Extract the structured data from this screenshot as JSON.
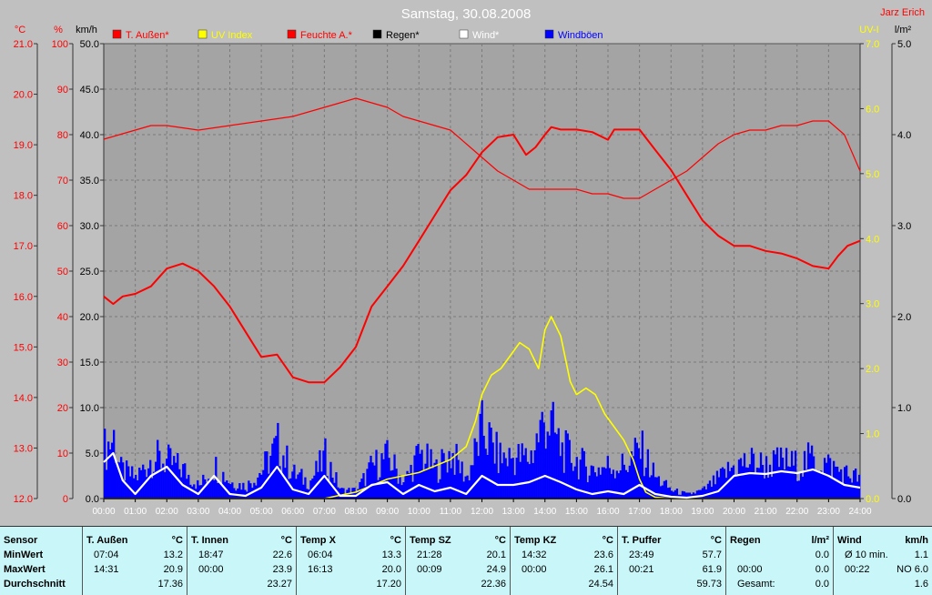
{
  "header": {
    "title": "Samstag, 30.08.2008",
    "author": "Jarz Erich"
  },
  "legend": [
    {
      "label": "T. Außen*",
      "color": "#ff0000"
    },
    {
      "label": "UV Index",
      "color": "#ffff00"
    },
    {
      "label": "Feuchte A.*",
      "color": "#ff0000"
    },
    {
      "label": "Regen*",
      "color": "#000000"
    },
    {
      "label": "Wind*",
      "color": "#ffffff"
    },
    {
      "label": "Windböen",
      "color": "#0000ff"
    }
  ],
  "chart_data": {
    "type": "line",
    "title": "Samstag, 30.08.2008",
    "x_ticks": [
      "00:00",
      "01:00",
      "02:00",
      "03:00",
      "04:00",
      "05:00",
      "06:00",
      "07:00",
      "08:00",
      "09:00",
      "10:00",
      "11:00",
      "12:00",
      "13:00",
      "14:00",
      "15:00",
      "16:00",
      "17:00",
      "18:00",
      "19:00",
      "20:00",
      "21:00",
      "22:00",
      "23:00",
      "24:00"
    ],
    "axes": {
      "temp": {
        "unit": "°C",
        "range": [
          12.0,
          21.0
        ],
        "ticks": [
          "12.0",
          "13.0",
          "14.0",
          "15.0",
          "16.0",
          "17.0",
          "18.0",
          "19.0",
          "20.0",
          "21.0"
        ],
        "color": "#ff0000"
      },
      "humidity": {
        "unit": "%",
        "range": [
          0,
          100
        ],
        "ticks": [
          "0",
          "10",
          "20",
          "30",
          "40",
          "50",
          "60",
          "70",
          "80",
          "90",
          "100"
        ],
        "color": "#ff0000"
      },
      "wind": {
        "unit": "km/h",
        "range": [
          0,
          50
        ],
        "ticks": [
          "0.0",
          "5.0",
          "10.0",
          "15.0",
          "20.0",
          "25.0",
          "30.0",
          "35.0",
          "40.0",
          "45.0",
          "50.0"
        ],
        "color": "#000000"
      },
      "uv": {
        "unit": "UV-I",
        "range": [
          0,
          7
        ],
        "ticks": [
          "0.0",
          "1.0",
          "2.0",
          "3.0",
          "4.0",
          "5.0",
          "6.0",
          "7.0"
        ],
        "color": "#ffff00"
      },
      "rain": {
        "unit": "l/m²",
        "range": [
          0,
          5
        ],
        "ticks": [
          "0.0",
          "1.0",
          "2.0",
          "3.0",
          "4.0",
          "5.0"
        ],
        "color": "#000000"
      }
    },
    "series": [
      {
        "name": "T. Außen*",
        "axis": "temp",
        "color": "#ff0000",
        "x": [
          0,
          0.3,
          0.6,
          1,
          1.5,
          2,
          2.5,
          3,
          3.5,
          4,
          4.5,
          5,
          5.5,
          6,
          6.5,
          7,
          7.5,
          8,
          8.5,
          9,
          9.5,
          10,
          10.5,
          11,
          11.5,
          12,
          12.5,
          13,
          13.4,
          13.7,
          14,
          14.2,
          14.5,
          15,
          15.5,
          16,
          16.2,
          16.5,
          17,
          17.5,
          18,
          18.5,
          19,
          19.5,
          20,
          20.5,
          21,
          21.5,
          22,
          22.5,
          23,
          23.3,
          23.6,
          24
        ],
        "y": [
          16.0,
          15.85,
          16.0,
          16.05,
          16.2,
          16.55,
          16.65,
          16.5,
          16.2,
          15.8,
          15.3,
          14.8,
          14.85,
          14.4,
          14.3,
          14.3,
          14.6,
          15.0,
          15.8,
          16.2,
          16.6,
          17.1,
          17.6,
          18.1,
          18.4,
          18.85,
          19.15,
          19.2,
          18.8,
          18.95,
          19.2,
          19.35,
          19.3,
          19.3,
          19.25,
          19.1,
          19.3,
          19.3,
          19.3,
          18.9,
          18.5,
          18.0,
          17.5,
          17.2,
          17.0,
          17.0,
          16.9,
          16.85,
          16.75,
          16.6,
          16.55,
          16.8,
          17.0,
          17.1
        ]
      },
      {
        "name": "Feuchte A.*",
        "axis": "humidity",
        "color": "#ff0000",
        "x": [
          0,
          0.5,
          1,
          1.5,
          2,
          3,
          4,
          5,
          6,
          7,
          7.5,
          8,
          8.5,
          9,
          9.5,
          10,
          10.5,
          11,
          11.5,
          12,
          12.5,
          13,
          13.5,
          14,
          14.5,
          15,
          15.5,
          16,
          16.5,
          17,
          17.5,
          18,
          18.5,
          19,
          19.5,
          20,
          20.5,
          21,
          21.5,
          22,
          22.5,
          23,
          23.5,
          24
        ],
        "y": [
          79,
          80,
          81,
          82,
          82,
          81,
          82,
          83,
          84,
          86,
          87,
          88,
          87,
          86,
          84,
          83,
          82,
          81,
          78,
          75,
          72,
          70,
          68,
          68,
          68,
          68,
          67,
          67,
          66,
          66,
          68,
          70,
          72,
          75,
          78,
          80,
          81,
          81,
          82,
          82,
          83,
          83,
          80,
          72
        ]
      },
      {
        "name": "UV Index",
        "axis": "uv",
        "color": "#ffff00",
        "x": [
          0,
          7,
          7.5,
          8,
          8.5,
          9,
          9.5,
          10,
          10.5,
          11,
          11.5,
          11.8,
          12,
          12.3,
          12.6,
          12.9,
          13.2,
          13.5,
          13.8,
          14,
          14.2,
          14.5,
          14.8,
          15,
          15.3,
          15.6,
          15.9,
          16.2,
          16.5,
          16.8,
          17,
          17.2,
          17.5,
          18,
          24
        ],
        "y": [
          0,
          0,
          0.05,
          0.1,
          0.2,
          0.3,
          0.35,
          0.4,
          0.5,
          0.6,
          0.8,
          1.2,
          1.6,
          1.9,
          2.0,
          2.2,
          2.4,
          2.3,
          2.0,
          2.6,
          2.8,
          2.5,
          1.8,
          1.6,
          1.7,
          1.6,
          1.3,
          1.1,
          0.9,
          0.6,
          0.3,
          0.1,
          0.02,
          0,
          0
        ]
      },
      {
        "name": "Regen*",
        "axis": "rain",
        "color": "#000000",
        "x": [
          0,
          24
        ],
        "y": [
          0,
          0
        ]
      },
      {
        "name": "Wind*",
        "axis": "wind",
        "color": "#ffffff",
        "x": [
          0,
          0.3,
          0.6,
          1,
          1.5,
          2,
          2.5,
          3,
          3.5,
          4,
          4.5,
          5,
          5.5,
          6,
          6.5,
          7,
          7.5,
          8,
          8.5,
          9,
          9.5,
          10,
          10.5,
          11,
          11.5,
          12,
          12.5,
          13,
          13.5,
          14,
          14.5,
          15,
          15.5,
          16,
          16.5,
          17,
          17.5,
          18,
          18.5,
          19,
          19.5,
          20,
          20.5,
          21,
          21.5,
          22,
          22.5,
          23,
          23.5,
          24
        ],
        "y": [
          4.0,
          5.0,
          2.0,
          0.5,
          2.5,
          3.5,
          1.5,
          0.5,
          2.5,
          0.5,
          0.3,
          1.2,
          3.5,
          1.0,
          0.5,
          2.5,
          0.3,
          0.3,
          1.5,
          1.8,
          0.5,
          1.5,
          0.8,
          1.2,
          0.5,
          2.5,
          1.5,
          1.5,
          1.8,
          2.5,
          1.8,
          1.0,
          0.5,
          0.8,
          0.5,
          1.5,
          0.5,
          0.2,
          0.1,
          0.3,
          0.8,
          2.5,
          2.8,
          2.7,
          3.0,
          2.8,
          3.2,
          2.5,
          1.5,
          1.2
        ]
      },
      {
        "name": "Windböen",
        "axis": "wind",
        "color": "#0000ff",
        "x": [
          0,
          0.3,
          0.5,
          1,
          1.5,
          2,
          2.5,
          3,
          3.5,
          4,
          4.5,
          5,
          5.5,
          6,
          6.5,
          7,
          7.5,
          8,
          8.5,
          9,
          9.5,
          10,
          10.5,
          11,
          11.5,
          12,
          12.5,
          13,
          13.5,
          14,
          14.5,
          15,
          15.5,
          16,
          16.5,
          17,
          17.5,
          18,
          18.5,
          19,
          19.5,
          20,
          20.5,
          21,
          21.5,
          22,
          22.5,
          23,
          23.5,
          24
        ],
        "y": [
          6.0,
          7.5,
          3.5,
          2.5,
          5.0,
          4.5,
          3.5,
          1.5,
          4.0,
          2.0,
          1.5,
          3.5,
          6.5,
          3.0,
          2.0,
          5.0,
          1.0,
          1.0,
          4.0,
          5.0,
          2.0,
          5.5,
          3.5,
          5.5,
          2.5,
          8.5,
          5.0,
          5.0,
          5.0,
          10.0,
          6.0,
          4.5,
          3.5,
          4.0,
          4.0,
          6.0,
          2.5,
          1.0,
          0.5,
          1.0,
          2.5,
          4.0,
          4.5,
          4.0,
          4.5,
          4.0,
          5.0,
          4.0,
          3.0,
          2.5
        ]
      }
    ]
  },
  "stats": [
    {
      "name": "Sensor",
      "unit": "",
      "rows": [
        [
          "MinWert",
          ""
        ],
        [
          "MaxWert",
          ""
        ],
        [
          "Durchschnitt",
          ""
        ]
      ]
    },
    {
      "name": "T. Außen",
      "unit": "°C",
      "rows": [
        [
          "07:04",
          "13.2"
        ],
        [
          "14:31",
          "20.9"
        ],
        [
          "",
          "17.36"
        ]
      ]
    },
    {
      "name": "T. Innen",
      "unit": "°C",
      "rows": [
        [
          "18:47",
          "22.6"
        ],
        [
          "00:00",
          "23.9"
        ],
        [
          "",
          "23.27"
        ]
      ]
    },
    {
      "name": "Temp X",
      "unit": "°C",
      "rows": [
        [
          "06:04",
          "13.3"
        ],
        [
          "16:13",
          "20.0"
        ],
        [
          "",
          "17.20"
        ]
      ]
    },
    {
      "name": "Temp SZ",
      "unit": "°C",
      "rows": [
        [
          "21:28",
          "20.1"
        ],
        [
          "00:09",
          "24.9"
        ],
        [
          "",
          "22.36"
        ]
      ]
    },
    {
      "name": "Temp KZ",
      "unit": "°C",
      "rows": [
        [
          "14:32",
          "23.6"
        ],
        [
          "00:00",
          "26.1"
        ],
        [
          "",
          "24.54"
        ]
      ]
    },
    {
      "name": "T. Puffer",
      "unit": "°C",
      "rows": [
        [
          "23:49",
          "57.7"
        ],
        [
          "00:21",
          "61.9"
        ],
        [
          "",
          "59.73"
        ]
      ]
    },
    {
      "name": "Regen",
      "unit": "l/m²",
      "rows": [
        [
          "",
          "0.0"
        ],
        [
          "00:00",
          "0.0"
        ],
        [
          "Gesamt:",
          "0.0"
        ]
      ]
    },
    {
      "name": "Wind",
      "unit": "km/h",
      "rows": [
        [
          "Ø 10 min.",
          "1.1"
        ],
        [
          "00:22",
          "NO 6.0"
        ],
        [
          "",
          "1.6"
        ]
      ]
    }
  ]
}
